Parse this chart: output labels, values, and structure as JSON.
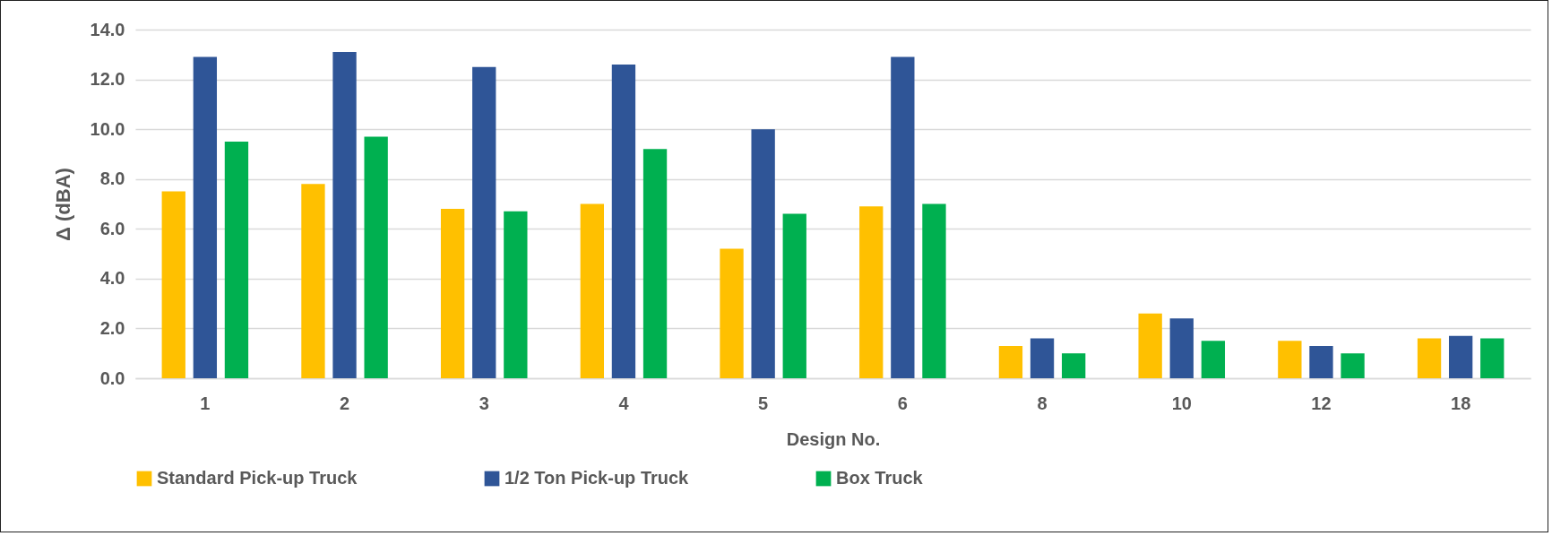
{
  "chart_data": {
    "type": "bar",
    "xlabel": "Design No.",
    "ylabel": "Δ (dBA)",
    "categories": [
      "1",
      "2",
      "3",
      "4",
      "5",
      "6",
      "8",
      "10",
      "12",
      "18"
    ],
    "series": [
      {
        "name": "Standard Pick-up Truck",
        "color": "#ffc000",
        "values": [
          7.5,
          7.8,
          6.8,
          7.0,
          5.2,
          6.9,
          1.3,
          2.6,
          1.5,
          1.6
        ]
      },
      {
        "name": "1/2 Ton Pick-up Truck",
        "color": "#2f5597",
        "values": [
          12.9,
          13.1,
          12.5,
          12.6,
          10.0,
          12.9,
          1.6,
          2.4,
          1.3,
          1.7
        ]
      },
      {
        "name": "Box Truck",
        "color": "#00b050",
        "values": [
          9.5,
          9.7,
          6.7,
          9.2,
          6.6,
          7.0,
          1.0,
          1.5,
          1.0,
          1.6
        ]
      }
    ],
    "ylim": [
      0,
      14
    ],
    "yticks": [
      {
        "value": 0,
        "label": "0.0"
      },
      {
        "value": 2,
        "label": "2.0"
      },
      {
        "value": 4,
        "label": "4.0"
      },
      {
        "value": 6,
        "label": "6.0"
      },
      {
        "value": 8,
        "label": "8.0"
      },
      {
        "value": 10,
        "label": "10.0"
      },
      {
        "value": 12,
        "label": "12.0"
      },
      {
        "value": 14,
        "label": "14.0"
      }
    ],
    "grid": "y",
    "legend": "bottom"
  }
}
